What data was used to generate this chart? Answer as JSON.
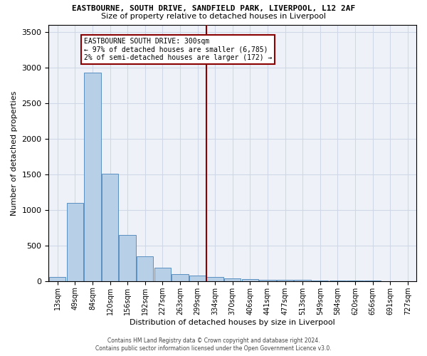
{
  "title": "EASTBOURNE, SOUTH DRIVE, SANDFIELD PARK, LIVERPOOL, L12 2AF",
  "subtitle": "Size of property relative to detached houses in Liverpool",
  "xlabel": "Distribution of detached houses by size in Liverpool",
  "ylabel": "Number of detached properties",
  "bin_labels": [
    "13sqm",
    "49sqm",
    "84sqm",
    "120sqm",
    "156sqm",
    "192sqm",
    "227sqm",
    "263sqm",
    "299sqm",
    "334sqm",
    "370sqm",
    "406sqm",
    "441sqm",
    "477sqm",
    "513sqm",
    "549sqm",
    "584sqm",
    "620sqm",
    "656sqm",
    "691sqm",
    "727sqm"
  ],
  "bar_heights": [
    55,
    1100,
    2930,
    1510,
    650,
    345,
    185,
    95,
    75,
    55,
    40,
    25,
    20,
    20,
    15,
    10,
    5,
    5,
    5,
    3,
    2
  ],
  "bar_color": "#b8cfe8",
  "bar_edge_color": "#5a8fc0",
  "grid_color": "#d0d8e8",
  "background_color": "#eef2f8",
  "vline_x_index": 8.5,
  "vline_color": "#8b0000",
  "annotation_text": "EASTBOURNE SOUTH DRIVE: 300sqm\n← 97% of detached houses are smaller (6,785)\n2% of semi-detached houses are larger (172) →",
  "annotation_box_color": "#8b0000",
  "ylim": [
    0,
    3600
  ],
  "yticks": [
    0,
    500,
    1000,
    1500,
    2000,
    2500,
    3000,
    3500
  ],
  "footer_line1": "Contains HM Land Registry data © Crown copyright and database right 2024.",
  "footer_line2": "Contains public sector information licensed under the Open Government Licence v3.0."
}
